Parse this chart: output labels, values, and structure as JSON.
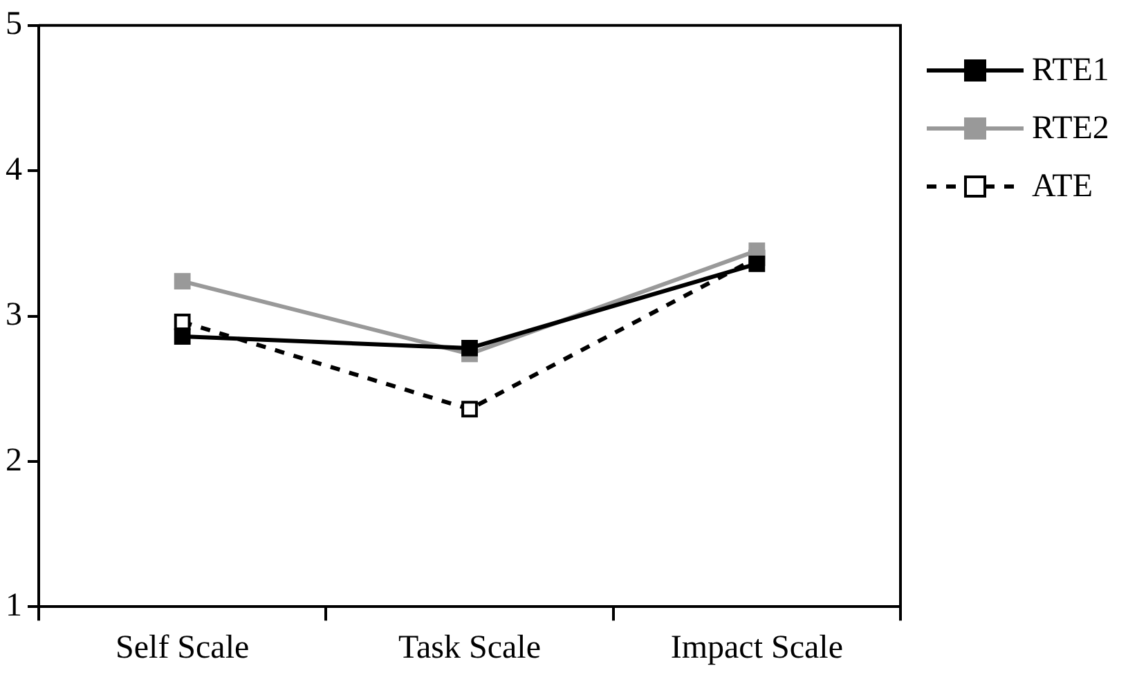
{
  "chart_data": {
    "type": "line",
    "categories": [
      "Self Scale",
      "Task Scale",
      "Impact Scale"
    ],
    "series": [
      {
        "name": "RTE1",
        "color": "#000000",
        "values": [
          2.86,
          2.78,
          3.36
        ],
        "marker": "square",
        "line_style": "solid"
      },
      {
        "name": "RTE2",
        "color": "#999999",
        "values": [
          3.24,
          2.74,
          3.45
        ],
        "marker": "square",
        "line_style": "solid"
      },
      {
        "name": "ATE",
        "color": "#000000",
        "values": [
          2.96,
          2.36,
          3.4
        ],
        "marker": "square",
        "line_style": "dashed"
      }
    ],
    "ylim": [
      1,
      5
    ],
    "yticks": [
      1,
      2,
      3,
      4,
      5
    ],
    "grid": false,
    "legend": "right"
  }
}
